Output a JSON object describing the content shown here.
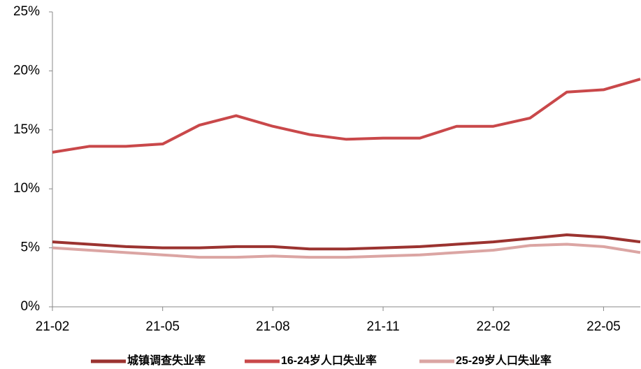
{
  "chart_data": {
    "type": "line",
    "categories": [
      "21-02",
      null,
      null,
      "21-05",
      null,
      null,
      "21-08",
      null,
      null,
      "21-11",
      null,
      null,
      "22-02",
      null,
      null,
      "22-05",
      null
    ],
    "series": [
      {
        "name": "城镇调查失业率",
        "color": "#9b3330",
        "values": [
          5.5,
          5.3,
          5.1,
          5.0,
          5.0,
          5.1,
          5.1,
          4.9,
          4.9,
          5.0,
          5.1,
          5.3,
          5.5,
          5.8,
          6.1,
          5.9,
          5.5
        ]
      },
      {
        "name": "16-24岁人口失业率",
        "color": "#c9484a",
        "values": [
          13.1,
          13.6,
          13.6,
          13.8,
          15.4,
          16.2,
          15.3,
          14.6,
          14.2,
          14.3,
          14.3,
          15.3,
          15.3,
          16.0,
          18.2,
          18.4,
          19.3
        ]
      },
      {
        "name": "25-29岁人口失业率",
        "color": "#dba5a3",
        "values": [
          5.0,
          4.8,
          4.6,
          4.4,
          4.2,
          4.2,
          4.3,
          4.2,
          4.2,
          4.3,
          4.4,
          4.6,
          4.8,
          5.2,
          5.3,
          5.1,
          4.6
        ]
      }
    ],
    "ylim": [
      0,
      25
    ],
    "yticks": [
      {
        "value": 0,
        "label": "0%"
      },
      {
        "value": 5,
        "label": "5%"
      },
      {
        "value": 10,
        "label": "10%"
      },
      {
        "value": 15,
        "label": "15%"
      },
      {
        "value": 20,
        "label": "20%"
      },
      {
        "value": 25,
        "label": "25%"
      }
    ],
    "grid": false,
    "legend": "bottom"
  }
}
